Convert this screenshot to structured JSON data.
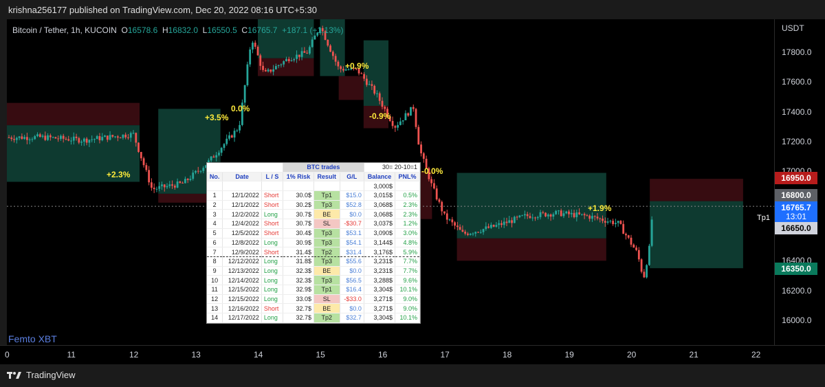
{
  "publish_line": "krishna256177 published on TradingView.com, Dec 20, 2022 08:16 UTC+5:30",
  "symbol": {
    "name": "Bitcoin / Tether, 1h, KUCOIN",
    "o_label": "O",
    "o": "16578.6",
    "h_label": "H",
    "h": "16832.0",
    "l_label": "L",
    "l": "16550.5",
    "c_label": "C",
    "c": "16765.7",
    "change": "+187.1 (+1.13%)"
  },
  "currency": "USDT",
  "brand": "Femto XBT",
  "logo_text": "TradingView",
  "tp1_label": "Tp1",
  "colors": {
    "up": "#26a69a",
    "down": "#ef5350",
    "green_zone": "#0f3d33",
    "red_zone": "#3a0d12"
  },
  "price_tags": {
    "p16950": "16950.0",
    "p16800": "16800.0",
    "p16765": "16765.7",
    "countdown": "13:01",
    "p16650": "16650.0",
    "p16350": "16350.0"
  },
  "percent_labels": [
    "+2.3%",
    "+3.5%",
    "0.0%",
    "+0.9%",
    "-0.9%",
    "-0.0%",
    "+1.9%"
  ],
  "chart_data": {
    "type": "candlestick",
    "title": "Bitcoin / Tether, 1h, KUCOIN",
    "x_ticks": [
      "0",
      "11",
      "12",
      "13",
      "14",
      "15",
      "16",
      "17",
      "18",
      "19",
      "20",
      "21",
      "22"
    ],
    "y_ticks": [
      "17800.0",
      "17600.0",
      "17400.0",
      "17200.0",
      "17000.0",
      "16800.0",
      "16600.0",
      "16400.0",
      "16200.0",
      "16000.0"
    ],
    "ylim": [
      15900,
      18000
    ],
    "price_path": [
      {
        "x": 0,
        "y": 17180
      },
      {
        "x": 10.5,
        "y": 17230
      },
      {
        "x": 11.2,
        "y": 17210
      },
      {
        "x": 12.0,
        "y": 17250
      },
      {
        "x": 12.3,
        "y": 16880
      },
      {
        "x": 12.8,
        "y": 16920
      },
      {
        "x": 13.2,
        "y": 17060
      },
      {
        "x": 13.7,
        "y": 17300
      },
      {
        "x": 13.9,
        "y": 17900
      },
      {
        "x": 14.1,
        "y": 17650
      },
      {
        "x": 14.5,
        "y": 17760
      },
      {
        "x": 14.8,
        "y": 17800
      },
      {
        "x": 15.0,
        "y": 17980
      },
      {
        "x": 15.3,
        "y": 17690
      },
      {
        "x": 15.6,
        "y": 17680
      },
      {
        "x": 15.9,
        "y": 17520
      },
      {
        "x": 16.2,
        "y": 17300
      },
      {
        "x": 16.5,
        "y": 17430
      },
      {
        "x": 16.6,
        "y": 17150
      },
      {
        "x": 16.8,
        "y": 16900
      },
      {
        "x": 17.0,
        "y": 16700
      },
      {
        "x": 17.3,
        "y": 16580
      },
      {
        "x": 17.8,
        "y": 16630
      },
      {
        "x": 18.3,
        "y": 16700
      },
      {
        "x": 18.8,
        "y": 16720
      },
      {
        "x": 19.3,
        "y": 16700
      },
      {
        "x": 19.8,
        "y": 16650
      },
      {
        "x": 20.1,
        "y": 16450
      },
      {
        "x": 20.2,
        "y": 16280
      },
      {
        "x": 20.3,
        "y": 16500
      },
      {
        "x": 20.35,
        "y": 16766
      }
    ],
    "zones": [
      {
        "kind": "red",
        "x0": -0.1,
        "x1": 12.1,
        "y0": 17310,
        "y1": 17460
      },
      {
        "kind": "green",
        "x0": -0.1,
        "x1": 12.1,
        "y0": 16930,
        "y1": 17310
      },
      {
        "kind": "red",
        "x0": 12.4,
        "x1": 13.4,
        "y0": 16850,
        "y1": 16790
      },
      {
        "kind": "green",
        "x0": 12.4,
        "x1": 13.4,
        "y0": 16850,
        "y1": 17420
      },
      {
        "kind": "red",
        "x0": 14.0,
        "x1": 14.9,
        "y0": 17640,
        "y1": 17760
      },
      {
        "kind": "green",
        "x0": 14.0,
        "x1": 14.9,
        "y0": 17760,
        "y1": 18050
      },
      {
        "kind": "green",
        "x0": 15.0,
        "x1": 15.4,
        "y0": 17640,
        "y1": 18050
      },
      {
        "kind": "red",
        "x0": 15.3,
        "x1": 15.7,
        "y0": 17480,
        "y1": 17640
      },
      {
        "kind": "green",
        "x0": 15.7,
        "x1": 16.1,
        "y0": 17440,
        "y1": 17880
      },
      {
        "kind": "red",
        "x0": 15.7,
        "x1": 16.1,
        "y0": 17290,
        "y1": 17440
      },
      {
        "kind": "red",
        "x0": 16.6,
        "x1": 16.8,
        "y0": 16680,
        "y1": 17000
      },
      {
        "kind": "green",
        "x0": 17.2,
        "x1": 19.6,
        "y0": 16550,
        "y1": 16780
      },
      {
        "kind": "green",
        "x0": 17.2,
        "x1": 19.6,
        "y0": 16780,
        "y1": 16990
      },
      {
        "kind": "red",
        "x0": 17.2,
        "x1": 19.6,
        "y0": 16400,
        "y1": 16550
      },
      {
        "kind": "red",
        "x0": 20.3,
        "x1": 21.8,
        "y0": 16800,
        "y1": 16950
      },
      {
        "kind": "green",
        "x0": 20.3,
        "x1": 21.8,
        "y0": 16350,
        "y1": 16800
      }
    ]
  },
  "trades": {
    "title": "BTC trades",
    "note": "30= 20-10=1",
    "headers": [
      "No.",
      "Date",
      "L / S",
      "1% Risk",
      "Result",
      "G/L",
      "Balance",
      "PNL%"
    ],
    "start_balance": "3,000$",
    "rows": [
      {
        "no": "1",
        "date": "12/1/2022",
        "side": "Short",
        "risk": "30.0$",
        "result": "Tp1",
        "gl": "$15.0",
        "bal": "3,015$",
        "pnl": "0.5%"
      },
      {
        "no": "2",
        "date": "12/1/2022",
        "side": "Short",
        "risk": "30.2$",
        "result": "Tp3",
        "gl": "$52.8",
        "bal": "3,068$",
        "pnl": "2.3%"
      },
      {
        "no": "3",
        "date": "12/2/2022",
        "side": "Long",
        "risk": "30.7$",
        "result": "BE",
        "gl": "$0.0",
        "bal": "3,068$",
        "pnl": "2.3%"
      },
      {
        "no": "4",
        "date": "12/4/2022",
        "side": "Short",
        "risk": "30.7$",
        "result": "SL",
        "gl": "-$30.7",
        "bal": "3,037$",
        "pnl": "1.2%"
      },
      {
        "no": "5",
        "date": "12/5/2022",
        "side": "Short",
        "risk": "30.4$",
        "result": "Tp3",
        "gl": "$53.1",
        "bal": "3,090$",
        "pnl": "3.0%"
      },
      {
        "no": "6",
        "date": "12/8/2022",
        "side": "Long",
        "risk": "30.9$",
        "result": "Tp3",
        "gl": "$54.1",
        "bal": "3,144$",
        "pnl": "4.8%"
      },
      {
        "no": "7",
        "date": "12/9/2022",
        "side": "Short",
        "risk": "31.4$",
        "result": "Tp2",
        "gl": "$31.4",
        "bal": "3,176$",
        "pnl": "5.9%"
      },
      {
        "no": "8",
        "date": "12/12/2022",
        "side": "Long",
        "risk": "31.8$",
        "result": "Tp3",
        "gl": "$55.6",
        "bal": "3,231$",
        "pnl": "7.7%"
      },
      {
        "no": "9",
        "date": "12/13/2022",
        "side": "Long",
        "risk": "32.3$",
        "result": "BE",
        "gl": "$0.0",
        "bal": "3,231$",
        "pnl": "7.7%"
      },
      {
        "no": "10",
        "date": "12/14/2022",
        "side": "Long",
        "risk": "32.3$",
        "result": "Tp3",
        "gl": "$56.5",
        "bal": "3,288$",
        "pnl": "9.6%"
      },
      {
        "no": "11",
        "date": "12/15/2022",
        "side": "Long",
        "risk": "32.9$",
        "result": "Tp1",
        "gl": "$16.4",
        "bal": "3,304$",
        "pnl": "10.1%"
      },
      {
        "no": "12",
        "date": "12/15/2022",
        "side": "Long",
        "risk": "33.0$",
        "result": "SL",
        "gl": "-$33.0",
        "bal": "3,271$",
        "pnl": "9.0%"
      },
      {
        "no": "13",
        "date": "12/16/2022",
        "side": "Short",
        "risk": "32.7$",
        "result": "BE",
        "gl": "$0.0",
        "bal": "3,271$",
        "pnl": "9.0%"
      },
      {
        "no": "14",
        "date": "12/17/2022",
        "side": "Long",
        "risk": "32.7$",
        "result": "Tp2",
        "gl": "$32.7",
        "bal": "3,304$",
        "pnl": "10.1%"
      }
    ]
  }
}
